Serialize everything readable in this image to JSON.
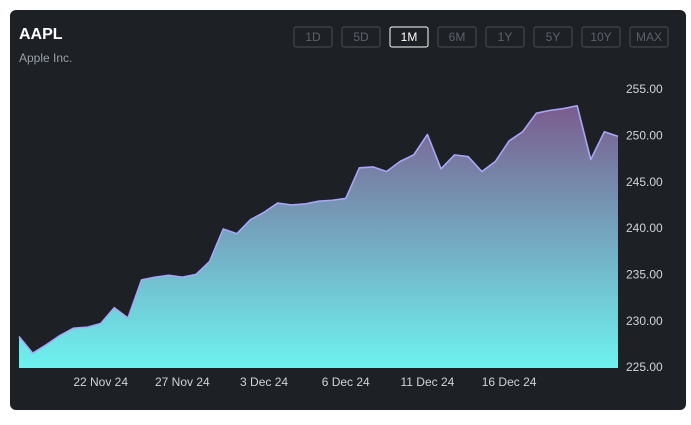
{
  "chart_data": {
    "type": "area",
    "title": "AAPL",
    "subtitle": "Apple Inc.",
    "range_buttons": [
      "1D",
      "5D",
      "1M",
      "6M",
      "1Y",
      "5Y",
      "10Y",
      "MAX"
    ],
    "active_range": "1M",
    "categories": [
      null,
      null,
      null,
      null,
      null,
      null,
      "22 Nov 24",
      null,
      null,
      null,
      null,
      null,
      "27 Nov 24",
      null,
      null,
      null,
      null,
      null,
      "3 Dec 24",
      null,
      null,
      null,
      null,
      null,
      "6 Dec 24",
      null,
      null,
      null,
      null,
      null,
      "11 Dec 24",
      null,
      null,
      null,
      null,
      null,
      "16 Dec 24",
      null,
      null,
      null,
      null,
      null,
      null,
      null,
      null
    ],
    "values": [
      228.4,
      226.6,
      227.5,
      228.5,
      229.3,
      229.4,
      229.8,
      231.5,
      230.4,
      234.5,
      234.8,
      235.0,
      234.8,
      235.1,
      236.5,
      240.0,
      239.5,
      241.0,
      241.8,
      242.8,
      242.6,
      242.7,
      243.0,
      243.1,
      243.3,
      246.6,
      246.7,
      246.2,
      247.3,
      248.0,
      250.2,
      246.5,
      248.0,
      247.8,
      246.2,
      247.3,
      249.5,
      250.5,
      252.5,
      252.8,
      253.0,
      253.3,
      247.5,
      250.5,
      250.0
    ],
    "color": "#a9a6f6",
    "fill_gradient": [
      "#7a5c8e",
      "#6ef2f0"
    ],
    "ylim": [
      225,
      255
    ],
    "yticks": [
      {
        "value": 225,
        "label": "225.00"
      },
      {
        "value": 230,
        "label": "230.00"
      },
      {
        "value": 235,
        "label": "235.00"
      },
      {
        "value": 240,
        "label": "240.00"
      },
      {
        "value": 245,
        "label": "245.00"
      },
      {
        "value": 250,
        "label": "250.00"
      },
      {
        "value": 255,
        "label": "255.00"
      }
    ],
    "grid": false
  }
}
